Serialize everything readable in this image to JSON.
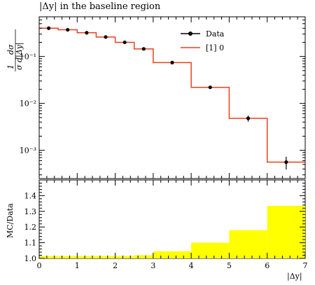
{
  "title": "|Δy| in the baseline region",
  "chart_data": [
    {
      "type": "line",
      "panel": "main",
      "title": "|Δy| in the baseline region",
      "xlabel": "|Δy|",
      "ylabel": "1/σ dσ/d|Δy|",
      "yscale": "log",
      "xlim": [
        0,
        7
      ],
      "ylim": [
        0.00025,
        0.7
      ],
      "x_tick_labels": [
        "0",
        "1",
        "2",
        "3",
        "4",
        "5",
        "6",
        "7"
      ],
      "y_tick_labels": [
        "10⁻³",
        "10⁻²",
        "10⁻¹"
      ],
      "legend": {
        "position": "top-right",
        "entries": [
          "Data",
          "[1] 0"
        ]
      },
      "series": [
        {
          "name": "Data",
          "style": "points-with-errorbars",
          "color": "#000000",
          "x": [
            0.25,
            0.75,
            1.25,
            1.75,
            2.25,
            2.75,
            3.5,
            4.5,
            5.5,
            6.5
          ],
          "y": [
            0.4,
            0.37,
            0.32,
            0.26,
            0.2,
            0.145,
            0.074,
            0.022,
            0.0048,
            0.00056
          ],
          "yerr": [
            0.01,
            0.01,
            0.01,
            0.008,
            0.006,
            0.005,
            0.003,
            0.001,
            0.0007,
            0.00017
          ]
        },
        {
          "name": "[1] 0",
          "style": "histogram",
          "color": "#e8401c",
          "bin_edges": [
            0,
            0.5,
            1,
            1.5,
            2,
            2.5,
            3,
            3.5,
            4,
            5,
            6,
            7
          ],
          "values": [
            0.4,
            0.37,
            0.32,
            0.26,
            0.2,
            0.145,
            0.074,
            0.074,
            0.022,
            0.0048,
            0.00056
          ]
        }
      ]
    },
    {
      "type": "bar",
      "panel": "ratio",
      "ylabel": "MC/Data",
      "xlabel": "|Δy|",
      "xlim": [
        0,
        7
      ],
      "ylim": [
        1.0,
        1.5
      ],
      "x_tick_labels": [
        "0",
        "1",
        "2",
        "3",
        "4",
        "5",
        "6",
        "7"
      ],
      "y_tick_labels": [
        "1.0",
        "1.1",
        "1.2",
        "1.3",
        "1.4"
      ],
      "fill_color": "#ffff00",
      "bin_edges": [
        0,
        0.5,
        1,
        1.5,
        2,
        2.5,
        3,
        3.5,
        4,
        5,
        6,
        7
      ],
      "values": [
        1.015,
        1.015,
        1.015,
        1.015,
        1.015,
        1.02,
        1.045,
        1.045,
        1.1,
        1.18,
        1.335
      ]
    }
  ]
}
